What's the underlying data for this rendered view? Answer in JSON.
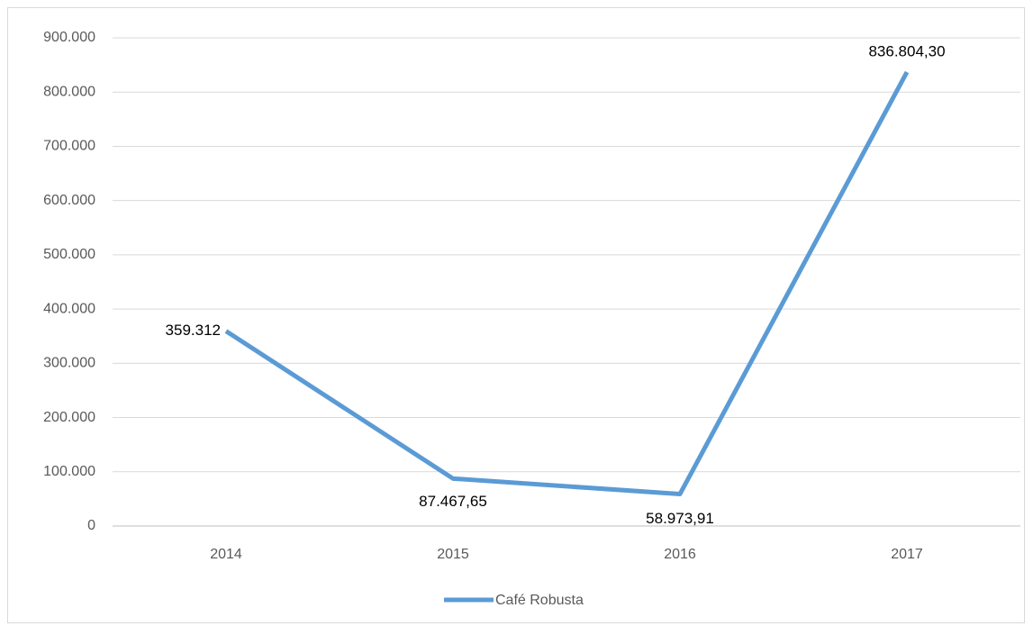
{
  "chart_data": {
    "type": "line",
    "categories": [
      "2014",
      "2015",
      "2016",
      "2017"
    ],
    "series": [
      {
        "name": "Café Robusta",
        "color": "#5b9bd5",
        "values": [
          359312,
          87467.65,
          58973.91,
          836804.3
        ],
        "value_labels": [
          "359.312",
          "87.467,65",
          "58.973,91",
          "836.804,30"
        ]
      }
    ],
    "ylim": [
      0,
      900000
    ],
    "yticks": [
      0,
      {
        "value": 100000,
        "label": "100.000"
      },
      {
        "value": 200000,
        "label": "200.000"
      },
      {
        "value": 300000,
        "label": "300.000"
      },
      {
        "value": 400000,
        "label": "400.000"
      },
      {
        "value": 500000,
        "label": "500.000"
      },
      {
        "value": 600000,
        "label": "600.000"
      },
      {
        "value": 700000,
        "label": "700.000"
      },
      {
        "value": 800000,
        "label": "800.000"
      },
      {
        "value": 900000,
        "label": "900.000"
      }
    ],
    "grid": true,
    "legend": "bottom"
  }
}
